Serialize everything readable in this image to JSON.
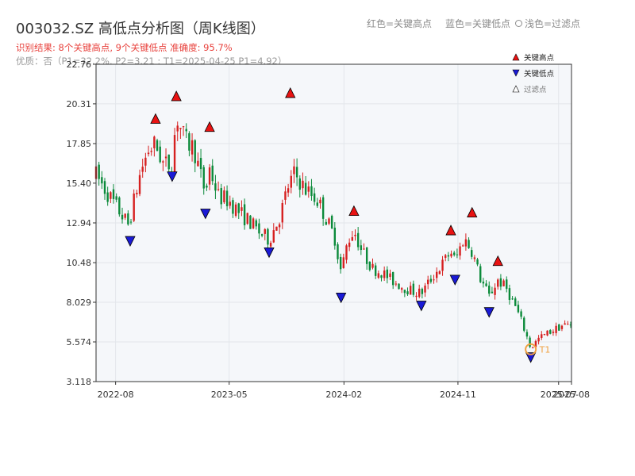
{
  "header": {
    "title": "003032.SZ 高低点分析图（周K线图）",
    "result_line": "识别结果: 8个关键高点, 9个关键低点   准确度: 95.7%",
    "quality_line": "优质：否（P1=32.2%, P2=3.21 ; T1=2025-04-25 P1=4.92）",
    "legend_red": "红色=关键高点",
    "legend_blue": "蓝色=关键低点",
    "legend_light": "浅色=过滤点"
  },
  "colors": {
    "up": "#d62020",
    "down": "#0b8a3a",
    "high_marker": "#e81212",
    "low_marker": "#1a1ad6",
    "t1_circle": "#f0a040",
    "plot_bg": "#f5f7fa",
    "grid": "#e3e6eb"
  },
  "chart_data": {
    "type": "candlestick",
    "ylim": [
      3.118,
      22.76
    ],
    "y_ticks": [
      "3.118",
      "5.574",
      "8.029",
      "10.48",
      "12.94",
      "15.40",
      "17.85",
      "20.31",
      "22.76"
    ],
    "x_range": [
      "2022-06-15",
      "2025-08-01"
    ],
    "x_ticks": [
      {
        "date": "2022-08-01",
        "label": "2022-08"
      },
      {
        "date": "2023-05-01",
        "label": "2023-05"
      },
      {
        "date": "2024-02-01",
        "label": "2024-02"
      },
      {
        "date": "2024-11-01",
        "label": "2024-11"
      },
      {
        "date": "2025-07-01",
        "label": "2025-07"
      },
      {
        "date": "2025-08-01",
        "label": "2025-08"
      }
    ],
    "legend_items": [
      {
        "label": "关键高点",
        "kind": "high"
      },
      {
        "label": "关键低点",
        "kind": "low"
      },
      {
        "label": "过滤点",
        "kind": "filtered"
      }
    ],
    "key_highs": [
      {
        "date": "2022-11-05",
        "price": 19.1
      },
      {
        "date": "2022-12-25",
        "price": 20.5
      },
      {
        "date": "2023-03-15",
        "price": 18.6
      },
      {
        "date": "2023-09-25",
        "price": 20.7
      },
      {
        "date": "2024-02-25",
        "price": 13.4
      },
      {
        "date": "2024-10-15",
        "price": 12.2
      },
      {
        "date": "2024-12-05",
        "price": 13.3
      },
      {
        "date": "2025-02-05",
        "price": 10.3
      }
    ],
    "key_lows": [
      {
        "date": "2022-09-05",
        "price": 12.1
      },
      {
        "date": "2022-12-15",
        "price": 16.1
      },
      {
        "date": "2023-03-05",
        "price": 13.8
      },
      {
        "date": "2023-08-05",
        "price": 11.4
      },
      {
        "date": "2024-01-25",
        "price": 8.6
      },
      {
        "date": "2024-08-05",
        "price": 8.1
      },
      {
        "date": "2024-10-25",
        "price": 9.7
      },
      {
        "date": "2025-01-15",
        "price": 7.7
      },
      {
        "date": "2025-04-25",
        "price": 4.9
      }
    ],
    "t1": {
      "date": "2025-04-25",
      "price": 4.92,
      "label": "T1"
    },
    "anchors": [
      [
        "2022-06-15",
        15.9
      ],
      [
        "2022-08-01",
        14.0
      ],
      [
        "2022-09-01",
        12.8
      ],
      [
        "2022-10-01",
        16.2
      ],
      [
        "2022-10-20",
        17.5
      ],
      [
        "2022-11-05",
        17.8
      ],
      [
        "2022-11-25",
        16.5
      ],
      [
        "2022-12-15",
        16.6
      ],
      [
        "2022-12-25",
        19.6
      ],
      [
        "2023-01-15",
        18.0
      ],
      [
        "2023-02-05",
        17.6
      ],
      [
        "2023-02-20",
        16.0
      ],
      [
        "2023-03-05",
        14.8
      ],
      [
        "2023-03-15",
        16.3
      ],
      [
        "2023-04-05",
        14.6
      ],
      [
        "2023-05-01",
        14.3
      ],
      [
        "2023-05-25",
        13.6
      ],
      [
        "2023-06-20",
        13.0
      ],
      [
        "2023-07-10",
        12.4
      ],
      [
        "2023-08-05",
        11.9
      ],
      [
        "2023-09-01",
        13.4
      ],
      [
        "2023-09-20",
        15.2
      ],
      [
        "2023-10-05",
        16.0
      ],
      [
        "2023-11-01",
        15.0
      ],
      [
        "2023-12-01",
        14.3
      ],
      [
        "2024-01-10",
        12.0
      ],
      [
        "2024-01-25",
        9.9
      ],
      [
        "2024-02-10",
        11.8
      ],
      [
        "2024-02-25",
        12.5
      ],
      [
        "2024-03-15",
        11.2
      ],
      [
        "2024-04-10",
        10.1
      ],
      [
        "2024-05-01",
        9.9
      ],
      [
        "2024-05-25",
        9.4
      ],
      [
        "2024-06-20",
        9.0
      ],
      [
        "2024-07-15",
        8.7
      ],
      [
        "2024-08-05",
        8.6
      ],
      [
        "2024-09-01",
        9.6
      ],
      [
        "2024-09-25",
        10.4
      ],
      [
        "2024-10-15",
        11.2
      ],
      [
        "2024-10-25",
        10.6
      ],
      [
        "2024-11-15",
        12.0
      ],
      [
        "2024-12-05",
        11.2
      ],
      [
        "2024-12-25",
        9.5
      ],
      [
        "2025-01-15",
        8.4
      ],
      [
        "2025-02-05",
        9.4
      ],
      [
        "2025-02-25",
        8.9
      ],
      [
        "2025-03-20",
        7.7
      ],
      [
        "2025-04-05",
        6.7
      ],
      [
        "2025-04-25",
        5.2
      ],
      [
        "2025-05-15",
        5.8
      ],
      [
        "2025-06-10",
        6.2
      ],
      [
        "2025-07-10",
        6.6
      ],
      [
        "2025-08-01",
        6.65
      ]
    ]
  }
}
